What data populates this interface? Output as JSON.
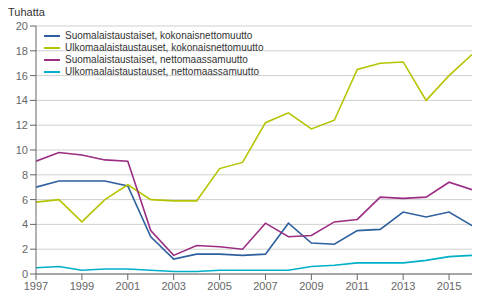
{
  "chart_data": {
    "type": "line",
    "ylabel": "Tuhatta",
    "x": [
      1997,
      1998,
      1999,
      2000,
      2001,
      2002,
      2003,
      2004,
      2005,
      2006,
      2007,
      2008,
      2009,
      2010,
      2011,
      2012,
      2013,
      2014,
      2015,
      2016
    ],
    "series": [
      {
        "name": "Suomalaistaustaiset, kokonaisnettomuutto",
        "color": "#2e5f9e",
        "values": [
          7.0,
          7.5,
          7.5,
          7.5,
          7.1,
          3.0,
          1.2,
          1.6,
          1.6,
          1.5,
          1.6,
          4.1,
          2.5,
          2.4,
          3.5,
          3.6,
          5.0,
          4.6,
          5.0,
          3.9
        ]
      },
      {
        "name": "Ulkomaalaistaustauset, kokonaisnettomuutto",
        "color": "#b5c400",
        "values": [
          5.8,
          6.0,
          4.2,
          6.0,
          7.2,
          6.0,
          5.9,
          5.9,
          8.5,
          9.0,
          12.2,
          13.0,
          11.7,
          12.4,
          16.5,
          17.0,
          17.1,
          14.0,
          16.0,
          17.7
        ]
      },
      {
        "name": "Suomalaistaustaiset, nettomaassamuutto",
        "color": "#9b2d82",
        "values": [
          9.1,
          9.8,
          9.6,
          9.2,
          9.1,
          3.5,
          1.5,
          2.3,
          2.2,
          2.0,
          4.1,
          3.0,
          3.1,
          4.2,
          4.4,
          6.2,
          6.1,
          6.2,
          7.4,
          6.8
        ]
      },
      {
        "name": "Ulkomaalaistaustauset, nettomaassamuutto",
        "color": "#00b0c8",
        "values": [
          0.5,
          0.6,
          0.3,
          0.4,
          0.4,
          0.3,
          0.2,
          0.2,
          0.3,
          0.3,
          0.3,
          0.3,
          0.6,
          0.7,
          0.9,
          0.9,
          0.9,
          1.1,
          1.4,
          1.5
        ]
      }
    ],
    "xlim": [
      1997,
      2016
    ],
    "xticks": [
      1997,
      1999,
      2001,
      2003,
      2005,
      2007,
      2009,
      2011,
      2013,
      2015
    ],
    "ylim": [
      0,
      20
    ],
    "yticks": [
      0,
      2,
      4,
      6,
      8,
      10,
      12,
      14,
      16,
      18,
      20
    ],
    "grid": "y",
    "legend": "upper left"
  }
}
